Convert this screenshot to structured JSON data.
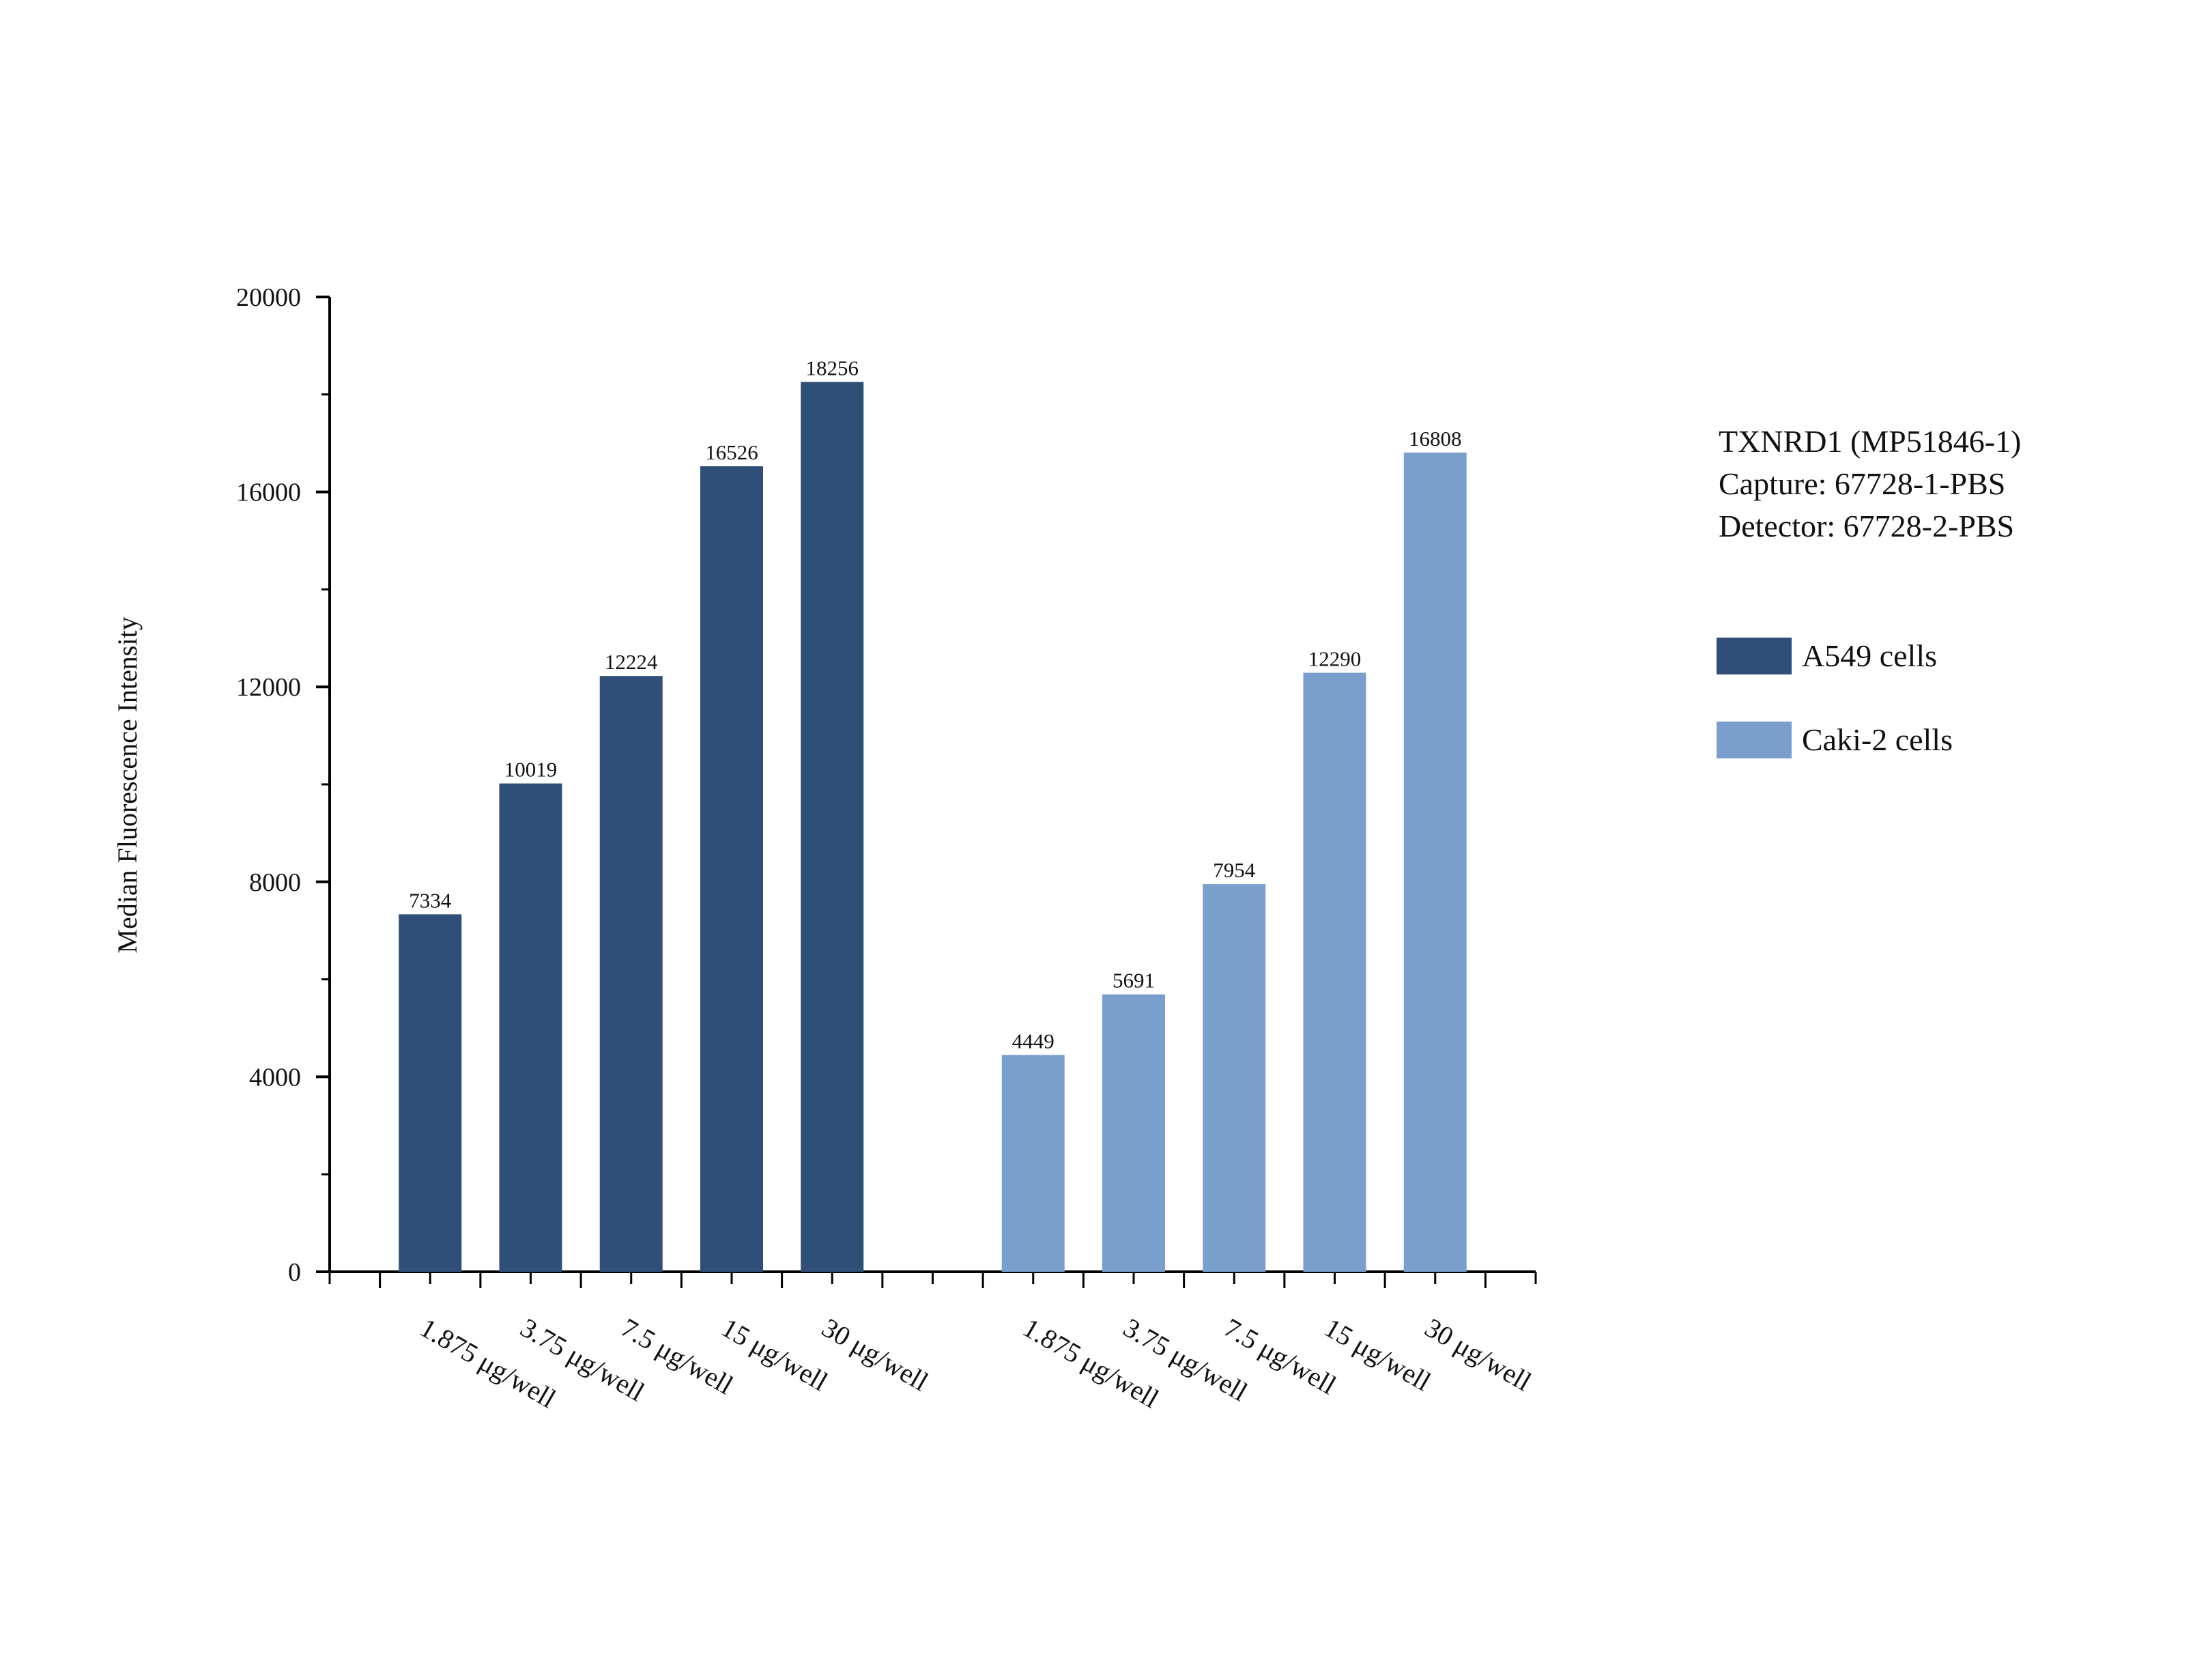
{
  "colors": {
    "a549": "#304f78",
    "caki2": "#7b9fcd",
    "axis": "#000000",
    "text": "#111111"
  },
  "chart_data": {
    "type": "bar",
    "xlabel": "",
    "ylabel": "Median Fluorescence Intensity",
    "ylim": [
      0,
      20000
    ],
    "yticks": [
      0,
      4000,
      8000,
      12000,
      16000,
      20000
    ],
    "grid": false,
    "legend_position": "right",
    "annotation_lines": [
      "TXNRD1 (MP51846-1)",
      "Capture: 67728-1-PBS",
      "Detector: 67728-2-PBS"
    ],
    "series": [
      {
        "name": "A549 cells",
        "color": "#304f78",
        "categories": [
          "1.875 μg/well",
          "3.75 μg/well",
          "7.5 μg/well",
          "15 μg/well",
          "30 μg/well"
        ],
        "values": [
          7334,
          10019,
          12224,
          16526,
          18256
        ]
      },
      {
        "name": "Caki-2 cells",
        "color": "#7b9fcd",
        "categories": [
          "1.875 μg/well",
          "3.75 μg/well",
          "7.5 μg/well",
          "15 μg/well",
          "30 μg/well"
        ],
        "values": [
          4449,
          5691,
          7954,
          12290,
          16808
        ]
      }
    ]
  }
}
